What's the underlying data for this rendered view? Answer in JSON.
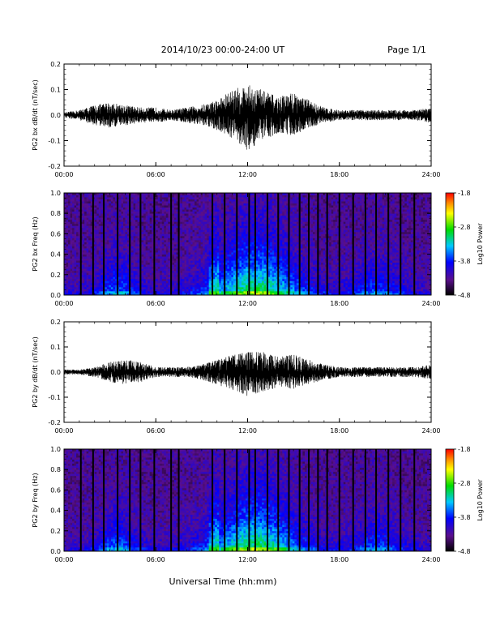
{
  "header": {
    "title": "2014/10/23  00:00-24:00 UT",
    "page": "Page 1/1"
  },
  "footer": {
    "xlabel": "Universal Time (hh:mm)"
  },
  "colors": {
    "trace": "#000000",
    "frame": "#000000",
    "spectrogram_low": "#000000",
    "spectrogram_high": "#ff0000"
  },
  "chart_data": [
    {
      "type": "line",
      "name": "bx-waveform",
      "ylabel": "PG2  bx  dB/dt  (nT/sec)",
      "ylim": [
        -0.2,
        0.2
      ],
      "yticks": [
        "0.2",
        "0.1",
        "0.0",
        "-0.1",
        "-0.2"
      ],
      "xlim": [
        "00:00",
        "24:00"
      ],
      "xticks": [
        "00:00",
        "06:00",
        "12:00",
        "18:00",
        "24:00"
      ],
      "x": [
        "00:00",
        "01:00",
        "02:00",
        "03:00",
        "04:00",
        "05:00",
        "06:00",
        "07:00",
        "08:00",
        "09:00",
        "10:00",
        "11:00",
        "12:00",
        "13:00",
        "14:00",
        "15:00",
        "16:00",
        "17:00",
        "18:00",
        "19:00",
        "20:00",
        "21:00",
        "22:00",
        "23:00",
        "24:00"
      ],
      "envelope_max": [
        0.01,
        0.02,
        0.04,
        0.05,
        0.04,
        0.03,
        0.03,
        0.02,
        0.03,
        0.04,
        0.06,
        0.1,
        0.12,
        0.1,
        0.07,
        0.09,
        0.06,
        0.03,
        0.02,
        0.02,
        0.02,
        0.02,
        0.02,
        0.02,
        0.03
      ],
      "envelope_min": [
        -0.01,
        -0.02,
        -0.04,
        -0.05,
        -0.04,
        -0.03,
        -0.03,
        -0.02,
        -0.03,
        -0.04,
        -0.06,
        -0.09,
        -0.14,
        -0.1,
        -0.07,
        -0.08,
        -0.05,
        -0.03,
        -0.02,
        -0.02,
        -0.02,
        -0.02,
        -0.02,
        -0.02,
        -0.03
      ]
    },
    {
      "type": "heatmap",
      "name": "bx-spectrogram",
      "ylabel": "PG2  bx  Freq  (Hz)",
      "ylim": [
        0.0,
        1.0
      ],
      "yticks": [
        "1.0",
        "0.8",
        "0.6",
        "0.4",
        "0.2",
        "0.0"
      ],
      "xlim": [
        "00:00",
        "24:00"
      ],
      "xticks": [
        "00:00",
        "06:00",
        "12:00",
        "18:00",
        "24:00"
      ],
      "colorbar": {
        "label": "Log10 Power",
        "min": -4.8,
        "max": -1.8,
        "ticks": [
          "-1.8",
          "-2.8",
          "-3.8",
          "-4.8"
        ]
      },
      "data_gap_hours": [
        1.1,
        1.9,
        2.6,
        3.5,
        4.3,
        5.0,
        5.9,
        7.0,
        7.5,
        9.7,
        10.5,
        11.3,
        12.1,
        12.5,
        13.3,
        14.0,
        14.7,
        15.4,
        16.0,
        16.6,
        17.2,
        18.0,
        18.9,
        19.7,
        20.4,
        21.2,
        22.0,
        22.9
      ]
    },
    {
      "type": "line",
      "name": "by-waveform",
      "ylabel": "PG2  by  dB/dt  (nT/sec)",
      "ylim": [
        -0.2,
        0.2
      ],
      "yticks": [
        "0.2",
        "0.1",
        "0.0",
        "-0.1",
        "-0.2"
      ],
      "xlim": [
        "00:00",
        "24:00"
      ],
      "xticks": [
        "00:00",
        "06:00",
        "12:00",
        "18:00",
        "24:00"
      ],
      "x": [
        "00:00",
        "01:00",
        "02:00",
        "03:00",
        "04:00",
        "05:00",
        "06:00",
        "07:00",
        "08:00",
        "09:00",
        "10:00",
        "11:00",
        "12:00",
        "13:00",
        "14:00",
        "15:00",
        "16:00",
        "17:00",
        "18:00",
        "19:00",
        "20:00",
        "21:00",
        "22:00",
        "23:00",
        "24:00"
      ],
      "envelope_max": [
        0.01,
        0.01,
        0.02,
        0.04,
        0.05,
        0.04,
        0.02,
        0.02,
        0.02,
        0.03,
        0.05,
        0.07,
        0.08,
        0.08,
        0.06,
        0.07,
        0.05,
        0.03,
        0.02,
        0.02,
        0.02,
        0.02,
        0.02,
        0.02,
        0.03
      ],
      "envelope_min": [
        -0.01,
        -0.01,
        -0.02,
        -0.04,
        -0.05,
        -0.04,
        -0.02,
        -0.02,
        -0.02,
        -0.03,
        -0.05,
        -0.07,
        -0.1,
        -0.08,
        -0.06,
        -0.07,
        -0.05,
        -0.03,
        -0.02,
        -0.02,
        -0.02,
        -0.02,
        -0.02,
        -0.02,
        -0.03
      ]
    },
    {
      "type": "heatmap",
      "name": "by-spectrogram",
      "ylabel": "PG2  by  Freq  (Hz)",
      "ylim": [
        0.0,
        1.0
      ],
      "yticks": [
        "1.0",
        "0.8",
        "0.6",
        "0.4",
        "0.2",
        "0.0"
      ],
      "xlim": [
        "00:00",
        "24:00"
      ],
      "xticks": [
        "00:00",
        "06:00",
        "12:00",
        "18:00",
        "24:00"
      ],
      "colorbar": {
        "label": "Log10 Power",
        "min": -4.8,
        "max": -1.8,
        "ticks": [
          "-1.8",
          "-2.8",
          "-3.8",
          "-4.8"
        ]
      },
      "data_gap_hours": [
        1.1,
        1.9,
        2.6,
        3.5,
        4.3,
        5.0,
        5.9,
        7.0,
        7.5,
        9.7,
        10.5,
        11.3,
        12.1,
        12.5,
        13.3,
        14.0,
        14.7,
        15.4,
        16.0,
        16.6,
        17.2,
        18.0,
        18.9,
        19.7,
        20.4,
        21.2,
        22.0,
        22.9
      ]
    }
  ]
}
